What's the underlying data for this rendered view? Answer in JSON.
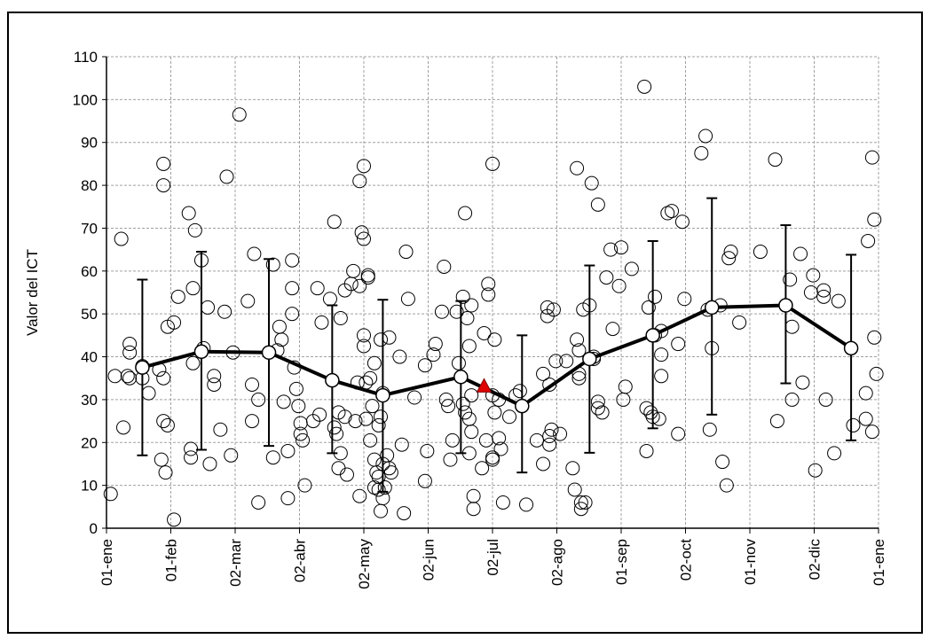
{
  "chart_data": {
    "type": "scatter",
    "ylabel": "Valor del ICT",
    "xlim": [
      0,
      366
    ],
    "ylim": [
      0,
      110
    ],
    "yticks": [
      0,
      10,
      20,
      30,
      40,
      50,
      60,
      70,
      80,
      90,
      100,
      110
    ],
    "xticks": [
      {
        "value": 0,
        "label": "01-ene"
      },
      {
        "value": 30.5,
        "label": "01-feb"
      },
      {
        "value": 61,
        "label": "02-mar"
      },
      {
        "value": 91.5,
        "label": "02-abr"
      },
      {
        "value": 122,
        "label": "02-may"
      },
      {
        "value": 152.5,
        "label": "02-jun"
      },
      {
        "value": 183,
        "label": "02-jul"
      },
      {
        "value": 213.5,
        "label": "02-ago"
      },
      {
        "value": 244,
        "label": "01-sep"
      },
      {
        "value": 274.5,
        "label": "02-oct"
      },
      {
        "value": 305,
        "label": "01-nov"
      },
      {
        "value": 335.5,
        "label": "02-dic"
      },
      {
        "value": 366,
        "label": "01-ene"
      }
    ],
    "grid": true,
    "color": "#000000",
    "x": [
      2,
      4,
      7,
      8,
      10,
      11,
      11,
      11,
      17,
      17,
      20,
      25,
      26,
      27,
      27,
      27,
      27,
      28,
      29,
      29,
      32,
      32,
      34,
      39,
      40,
      40,
      41,
      41,
      42,
      45,
      46,
      48,
      49,
      51,
      51,
      54,
      56,
      57,
      59,
      60,
      63,
      67,
      69,
      69,
      70,
      72,
      72,
      79,
      79,
      81,
      82,
      83,
      84,
      86,
      86,
      88,
      88,
      88,
      89,
      90,
      91,
      92,
      92,
      93,
      94,
      98,
      100,
      101,
      102,
      106,
      108,
      108,
      109,
      110,
      110,
      111,
      111,
      113,
      113,
      114,
      116,
      117,
      118,
      119,
      120,
      120,
      120,
      121,
      122,
      122,
      122,
      122,
      123,
      123,
      124,
      124,
      125,
      125,
      126,
      127,
      127,
      127,
      128,
      129,
      129,
      129,
      130,
      130,
      130,
      131,
      131,
      131,
      132,
      133,
      134,
      134,
      135,
      139,
      140,
      141,
      142,
      143,
      146,
      151,
      151,
      152,
      155,
      156,
      159,
      160,
      161,
      162,
      163,
      164,
      166,
      167,
      169,
      169,
      170,
      170,
      171,
      172,
      172,
      172,
      173,
      173,
      173,
      174,
      174,
      178,
      179,
      180,
      181,
      181,
      183,
      183,
      183,
      183,
      184,
      184,
      186,
      186,
      187,
      188,
      191,
      194,
      196,
      199,
      204,
      207,
      207,
      209,
      209,
      210,
      210,
      210,
      211,
      212,
      213,
      215,
      218,
      221,
      222,
      223,
      223,
      224,
      224,
      224,
      225,
      225,
      226,
      227,
      229,
      230,
      231,
      231,
      233,
      233,
      233,
      235,
      237,
      239,
      240,
      243,
      244,
      245,
      246,
      249,
      255,
      256,
      256,
      257,
      258,
      259,
      260,
      260,
      262,
      263,
      263,
      263,
      266,
      268,
      271,
      271,
      273,
      274,
      282,
      284,
      285,
      286,
      287,
      291,
      292,
      294,
      295,
      296,
      300,
      310,
      317,
      318,
      324,
      325,
      325,
      330,
      329,
      334,
      335,
      336,
      340,
      340,
      341,
      345,
      347,
      354,
      360,
      360,
      361,
      363,
      363,
      364,
      365,
      364
    ],
    "values": [
      8,
      35.5,
      67.5,
      23.5,
      35.5,
      41,
      43,
      35,
      35,
      37.8,
      31.5,
      37,
      16,
      35,
      85,
      80,
      25,
      13,
      47,
      24,
      2,
      48,
      54,
      73.5,
      18.5,
      16.5,
      38.5,
      56,
      69.5,
      62.5,
      42,
      51.5,
      15,
      35.5,
      33.5,
      23,
      50.5,
      82,
      17,
      41,
      96.5,
      53,
      33.5,
      25,
      64,
      30,
      6,
      61.5,
      16.5,
      41.5,
      47,
      44,
      29.5,
      7,
      18,
      62.5,
      56,
      50,
      37.5,
      32.5,
      28.5,
      22,
      24.5,
      20.5,
      10,
      25,
      56,
      26.5,
      48,
      53.5,
      71.5,
      23.5,
      22,
      14,
      27,
      49,
      17.5,
      26,
      55.5,
      12.5,
      57,
      60,
      25,
      34,
      56.5,
      7.5,
      81,
      69,
      84.5,
      45,
      42.5,
      67.5,
      34,
      25.5,
      59,
      58.5,
      35,
      20.5,
      28.5,
      9.5,
      16,
      38.5,
      13,
      24,
      12,
      9,
      26,
      4,
      44,
      7,
      15,
      31.5,
      9.5,
      17,
      14,
      44.5,
      13,
      40,
      19.5,
      3.5,
      64.5,
      53.5,
      30.5,
      38,
      11,
      18,
      40.5,
      43,
      50.5,
      61,
      30,
      28.5,
      16,
      20.5,
      50.5,
      38.5,
      54,
      29,
      73.5,
      27,
      49,
      25.5,
      17.5,
      42.5,
      52,
      31,
      22.5,
      7.5,
      4.5,
      14,
      45.5,
      20.5,
      57,
      54.5,
      16,
      31,
      85,
      16.5,
      44,
      27,
      30,
      21,
      18.5,
      6,
      26,
      31,
      32,
      5.5,
      20.5,
      15,
      36,
      51.5,
      49.5,
      33.5,
      21.5,
      19.5,
      23,
      51,
      39,
      22,
      39,
      14,
      9,
      44,
      84,
      41.5,
      36,
      35,
      4.5,
      6,
      51,
      6,
      52,
      80.5,
      40,
      39.5,
      75.5,
      29.5,
      28,
      27,
      58.5,
      65,
      46.5,
      56.5,
      65.5,
      30,
      33,
      60.5,
      103,
      18,
      28,
      51.5,
      27,
      26,
      54,
      45,
      25.5,
      40.5,
      35.5,
      46,
      73.5,
      74,
      22,
      43,
      71.5,
      53.5,
      87.5,
      91.5,
      51,
      23,
      42,
      52,
      15.5,
      10,
      63,
      64.5,
      48,
      64.5,
      86,
      25,
      58,
      47,
      30,
      34,
      64,
      55,
      59,
      13.5,
      54,
      55.5,
      30,
      17.5,
      53,
      24,
      25.5,
      31.5,
      67,
      86.5,
      22.5,
      72,
      36,
      44.5
    ],
    "mean": {
      "color": "#000000",
      "x": [
        17,
        45,
        77,
        107,
        131,
        168,
        197,
        229,
        259,
        287,
        322,
        353
      ],
      "values": [
        37.5,
        41.2,
        41,
        34.5,
        31,
        35.3,
        28.5,
        39.5,
        45,
        51.5,
        52,
        42
      ],
      "upper": [
        58,
        64.5,
        62.8,
        52,
        53.3,
        53,
        45,
        61.3,
        67,
        77,
        70.7,
        63.8
      ],
      "lower": [
        17,
        18.3,
        19.2,
        17.5,
        8.5,
        17.5,
        13,
        17.6,
        23.3,
        26.5,
        33.8,
        20.5
      ]
    },
    "marker": {
      "x": 179,
      "value": 33,
      "color": "#e00000"
    }
  }
}
